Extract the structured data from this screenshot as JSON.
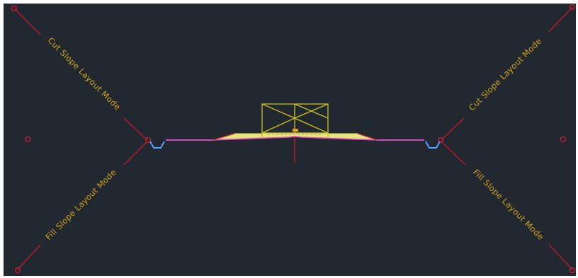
{
  "viewport": {
    "background": "#212830",
    "border": "#ffffff"
  },
  "labels": {
    "cut_left": "Cut Slope Layout Mode",
    "fill_left": "Fill Slope Layout Mode",
    "cut_right": "Cut Slope Layout Mode",
    "fill_right": "Fill Slope Layout Mode"
  },
  "colors": {
    "label": "#d4a017",
    "axis": "#c0182a",
    "marker": "#d0202e",
    "surface": "#e040c8",
    "pavement": "#e6e680",
    "median_frame": "#c8c020",
    "ditch": "#5aa0ff"
  },
  "icons": {
    "origin_marker": "circle-marker-icon",
    "tie_point": "grip-point-icon"
  }
}
